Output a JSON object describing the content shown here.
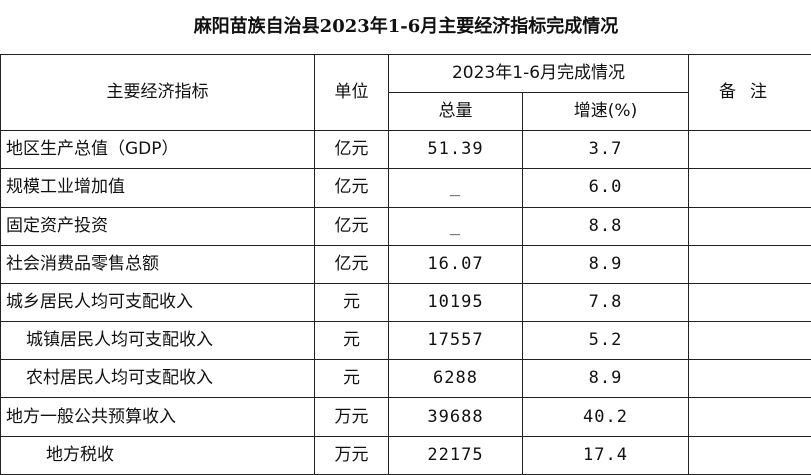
{
  "title": "麻阳苗族自治县2023年1-6月主要经济指标完成情况",
  "header": {
    "indicator": "主要经济指标",
    "unit": "单位",
    "period": "2023年1-6月完成情况",
    "total": "总量",
    "growth": "增速(%)",
    "note": "备注"
  },
  "rows": [
    {
      "name": "地区生产总值（GDP）",
      "unit": "亿元",
      "total": "51.39",
      "growth": "3.7",
      "note": ""
    },
    {
      "name": "规模工业增加值",
      "unit": "亿元",
      "total": "_",
      "growth": "6.0",
      "note": ""
    },
    {
      "name": "固定资产投资",
      "unit": "亿元",
      "total": "_",
      "growth": "8.8",
      "note": ""
    },
    {
      "name": "社会消费品零售总额",
      "unit": "亿元",
      "total": "16.07",
      "growth": "8.9",
      "note": ""
    },
    {
      "name": "城乡居民人均可支配收入",
      "unit": "元",
      "total": "10195",
      "growth": "7.8",
      "note": ""
    },
    {
      "name": "城镇居民人均可支配收入",
      "unit": "元",
      "total": "17557",
      "growth": "5.2",
      "note": ""
    },
    {
      "name": "农村居民人均可支配收入",
      "unit": "元",
      "total": "6288",
      "growth": "8.9",
      "note": ""
    },
    {
      "name": "地方一般公共预算收入",
      "unit": "万元",
      "total": "39688",
      "growth": "40.2",
      "note": ""
    },
    {
      "name": "地方税收",
      "unit": "万元",
      "total": "22175",
      "growth": "17.4",
      "note": ""
    }
  ]
}
